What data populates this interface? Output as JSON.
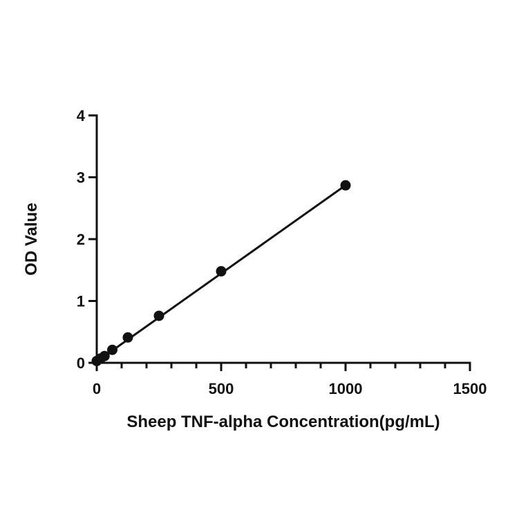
{
  "chart_data": {
    "type": "scatter",
    "xlabel": "Sheep TNF-alpha Concentration(pg/mL)",
    "ylabel": "OD Value",
    "xlim": [
      0,
      1500
    ],
    "ylim": [
      0,
      4
    ],
    "x_major_ticks": [
      0,
      500,
      1000,
      1500
    ],
    "x_minor_step": 100,
    "y_major_ticks": [
      0,
      1,
      2,
      3,
      4
    ],
    "x_tick_labels": [
      "0",
      "500",
      "1000",
      "1500"
    ],
    "y_tick_labels": [
      "0",
      "1",
      "2",
      "3",
      "4"
    ],
    "grid": false,
    "legend": "none",
    "series": [
      {
        "x": [
          0,
          15.6,
          31.25,
          62.5,
          125,
          250,
          500,
          1000
        ],
        "y": [
          0.03,
          0.07,
          0.11,
          0.21,
          0.41,
          0.76,
          1.48,
          2.87
        ]
      }
    ],
    "fit_line": {
      "x": [
        0,
        1000
      ],
      "y": [
        0.02,
        2.87
      ]
    }
  }
}
